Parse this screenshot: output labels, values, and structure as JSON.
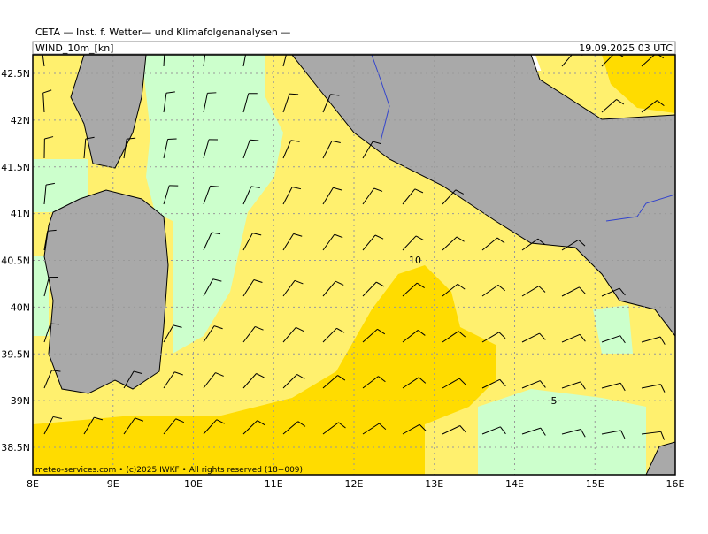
{
  "header": {
    "title": "CETA — Inst. f. Wetter— und Klimafolgenanalysen —",
    "product": "WIND_10m_[kn]",
    "valid": "19.09.2025 03 UTC"
  },
  "map": {
    "lat_labels": [
      "42.5N",
      "42N",
      "41.5N",
      "41N",
      "40.5N",
      "40N",
      "39.5N",
      "39N",
      "38.5N"
    ],
    "lon_labels": [
      "8E",
      "9E",
      "10E",
      "11E",
      "12E",
      "13E",
      "14E",
      "15E",
      "16E"
    ],
    "contour_labels": [
      "10",
      "5"
    ],
    "footer": "meteo-services.com • (c)2025 IWKF • All rights reserved (18+009)"
  }
}
